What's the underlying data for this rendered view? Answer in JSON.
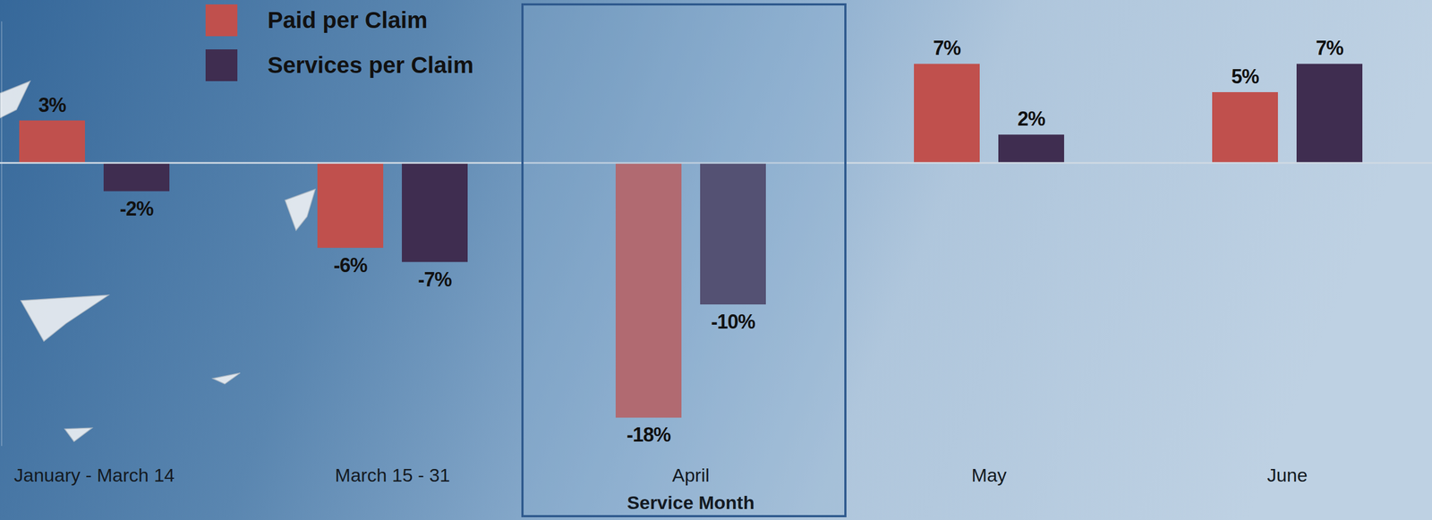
{
  "chart_data": {
    "type": "bar",
    "x_label": "Service Month",
    "categories": [
      "January - March 14",
      "March 15 - 31",
      "April",
      "May",
      "June"
    ],
    "series": [
      {
        "name": "Paid per Claim",
        "color": "#c0504d",
        "values": [
          3,
          -6,
          -18,
          7,
          5
        ],
        "value_labels": [
          "3%",
          "-6%",
          "-18%",
          "7%",
          "5%"
        ]
      },
      {
        "name": "Services per Claim",
        "color": "#3f2d50",
        "values": [
          -2,
          -7,
          -10,
          2,
          7
        ],
        "value_labels": [
          "-2%",
          "-7%",
          "-10%",
          "2%",
          "7%"
        ]
      }
    ],
    "ylim": [
      -20,
      10
    ],
    "yticks": [
      0
    ],
    "grid": true,
    "tick_labels": "x",
    "data_labels": true,
    "legend": "top-left"
  }
}
